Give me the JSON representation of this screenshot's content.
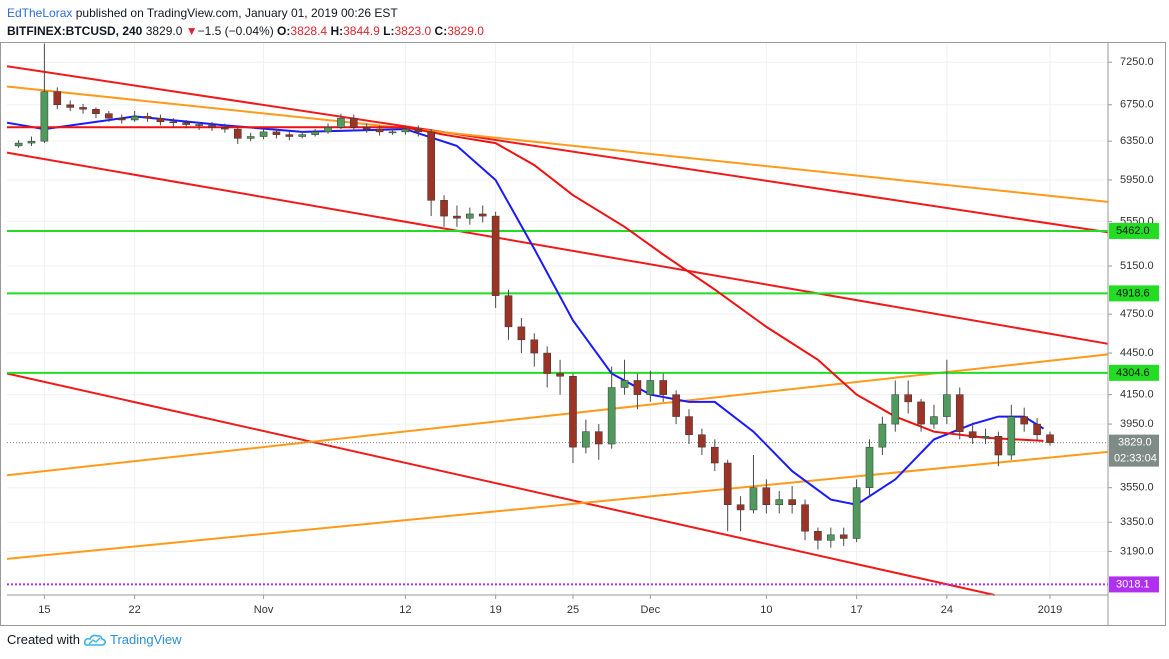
{
  "chart_data": {
    "type": "candlestick",
    "header": {
      "author": "EdTheLorax",
      "published": "published on TradingView.com, January 01, 2019 00:26 EST",
      "symbol": "BITFINEX:BTCUSD, 240",
      "price": "3829.0",
      "arrow": "▼",
      "change": "−1.5 (−0.04%)",
      "o_label": "O:",
      "o": "3828.4",
      "h_label": "H:",
      "h": "3844.9",
      "l_label": "L:",
      "l": "3823.0",
      "c_label": "C:",
      "c": "3829.0"
    },
    "footer": {
      "created": "Created with",
      "brand": "TradingView"
    },
    "log_scale": true,
    "grid": true,
    "xlim": [
      -2.9,
      82.5
    ],
    "ylim": [
      2965,
      7500
    ],
    "xticks": [
      {
        "value": 0,
        "label": "15"
      },
      {
        "value": 7,
        "label": "22"
      },
      {
        "value": 17,
        "label": "Nov"
      },
      {
        "value": 28,
        "label": "12"
      },
      {
        "value": 35,
        "label": "19"
      },
      {
        "value": 41,
        "label": "25"
      },
      {
        "value": 47,
        "label": "Dec"
      },
      {
        "value": 56,
        "label": "10"
      },
      {
        "value": 63,
        "label": "17"
      },
      {
        "value": 70,
        "label": "24"
      },
      {
        "value": 78,
        "label": "2019"
      }
    ],
    "yticks": [
      {
        "value": 7250,
        "label": "7250.0"
      },
      {
        "value": 6750,
        "label": "6750.0"
      },
      {
        "value": 6350,
        "label": "6350.0"
      },
      {
        "value": 5950,
        "label": "5950.0"
      },
      {
        "value": 5550,
        "label": "5550.0"
      },
      {
        "value": 5150,
        "label": "5150.0"
      },
      {
        "value": 4750,
        "label": "4750.0"
      },
      {
        "value": 4450,
        "label": "4450.0"
      },
      {
        "value": 4150,
        "label": "4150.0"
      },
      {
        "value": 3950,
        "label": "3950.0"
      },
      {
        "value": 3550,
        "label": "3550.0"
      },
      {
        "value": 3350,
        "label": "3350.0"
      },
      {
        "value": 3190,
        "label": "3190.0"
      }
    ],
    "candle_colors": {
      "up": "#4f9a5c",
      "down": "#9b3426",
      "wick": "#4a4a4a"
    },
    "candles": {
      "x": [
        -2,
        -1,
        0,
        1,
        2,
        3,
        4,
        5,
        6,
        7,
        8,
        9,
        10,
        11,
        12,
        13,
        14,
        15,
        16,
        17,
        18,
        19,
        20,
        21,
        22,
        23,
        24,
        25,
        26,
        27,
        28,
        29,
        30,
        31,
        32,
        33,
        34,
        35,
        36,
        37,
        38,
        39,
        40,
        41,
        42,
        43,
        44,
        45,
        46,
        47,
        48,
        49,
        50,
        51,
        52,
        53,
        54,
        55,
        56,
        57,
        58,
        59,
        60,
        61,
        62,
        63,
        64,
        65,
        66,
        67,
        68,
        69,
        70,
        71,
        72,
        73,
        74,
        75,
        76,
        77,
        78
      ],
      "open": [
        6300,
        6330,
        6350,
        6900,
        6750,
        6720,
        6700,
        6650,
        6600,
        6580,
        6620,
        6600,
        6560,
        6550,
        6530,
        6520,
        6500,
        6480,
        6380,
        6400,
        6450,
        6420,
        6400,
        6420,
        6450,
        6500,
        6600,
        6500,
        6480,
        6450,
        6450,
        6480,
        6450,
        5750,
        5600,
        5580,
        5620,
        5600,
        4900,
        4650,
        4550,
        4450,
        4300,
        4280,
        3800,
        3900,
        3820,
        4200,
        4250,
        4150,
        4250,
        4150,
        4000,
        3880,
        3800,
        3700,
        3450,
        3420,
        3550,
        3450,
        3480,
        3450,
        3300,
        3250,
        3280,
        3260,
        3550,
        3800,
        3950,
        4150,
        4100,
        3950,
        4000,
        4150,
        3900,
        3860,
        3870,
        3750,
        4000,
        3950,
        3880
      ],
      "high": [
        6360,
        6400,
        7480,
        6950,
        6800,
        6760,
        6720,
        6680,
        6640,
        6680,
        6660,
        6640,
        6600,
        6580,
        6560,
        6560,
        6540,
        6500,
        6440,
        6480,
        6480,
        6460,
        6460,
        6480,
        6540,
        6650,
        6640,
        6540,
        6520,
        6490,
        6520,
        6520,
        6480,
        5800,
        5700,
        5680,
        5700,
        5640,
        4950,
        4720,
        4600,
        4500,
        4400,
        4300,
        3980,
        3950,
        4350,
        4400,
        4300,
        4320,
        4300,
        4180,
        4050,
        3920,
        3850,
        3720,
        3500,
        3750,
        3600,
        3530,
        3560,
        3480,
        3320,
        3320,
        3320,
        3600,
        3850,
        4000,
        4250,
        4250,
        4120,
        4080,
        4400,
        4200,
        3960,
        3920,
        3900,
        4080,
        4060,
        3990,
        3900
      ],
      "low": [
        6280,
        6300,
        6330,
        6700,
        6680,
        6650,
        6600,
        6560,
        6540,
        6560,
        6560,
        6520,
        6500,
        6490,
        6470,
        6460,
        6440,
        6320,
        6350,
        6370,
        6380,
        6360,
        6380,
        6400,
        6430,
        6480,
        6460,
        6440,
        6410,
        6420,
        6420,
        6400,
        5600,
        5500,
        5500,
        5520,
        5540,
        4800,
        4550,
        4450,
        4350,
        4200,
        4150,
        3700,
        3760,
        3720,
        3790,
        4150,
        4050,
        4100,
        4100,
        3950,
        3820,
        3750,
        3650,
        3300,
        3300,
        3400,
        3400,
        3400,
        3400,
        3250,
        3200,
        3210,
        3220,
        3240,
        3500,
        3750,
        3900,
        4020,
        3900,
        3920,
        3950,
        3850,
        3820,
        3820,
        3680,
        3720,
        3900,
        3840,
        3810
      ],
      "close": [
        6330,
        6350,
        6900,
        6750,
        6720,
        6700,
        6650,
        6600,
        6580,
        6620,
        6600,
        6560,
        6550,
        6530,
        6520,
        6500,
        6480,
        6380,
        6400,
        6450,
        6420,
        6400,
        6420,
        6450,
        6500,
        6600,
        6500,
        6480,
        6450,
        6450,
        6480,
        6450,
        5750,
        5600,
        5580,
        5620,
        5600,
        4900,
        4650,
        4550,
        4450,
        4300,
        4280,
        3800,
        3900,
        3820,
        4200,
        4250,
        4150,
        4250,
        4150,
        4000,
        3880,
        3800,
        3700,
        3450,
        3420,
        3550,
        3450,
        3480,
        3450,
        3300,
        3250,
        3280,
        3260,
        3550,
        3800,
        3950,
        4150,
        4100,
        3950,
        4000,
        4150,
        3900,
        3860,
        3870,
        3750,
        4000,
        3950,
        3880,
        3829
      ]
    },
    "series": [
      {
        "color": "#1a1aff",
        "x": [
          -2.9,
          0,
          7,
          14,
          20,
          28,
          32,
          35,
          38,
          41,
          44,
          47,
          50,
          52,
          55,
          58,
          61,
          63,
          66,
          69,
          72,
          74,
          76,
          77.5
        ],
        "values": [
          6550,
          6480,
          6620,
          6520,
          6450,
          6480,
          6300,
          5950,
          5300,
          4700,
          4300,
          4150,
          4100,
          4100,
          3900,
          3650,
          3480,
          3450,
          3600,
          3850,
          3950,
          4000,
          4000,
          3920
        ]
      },
      {
        "color": "#f01010",
        "x": [
          -2.9,
          10,
          28,
          31,
          35,
          38,
          41,
          45,
          48,
          52,
          56,
          60,
          63,
          66,
          69,
          73,
          77.5
        ],
        "values": [
          6500,
          6500,
          6500,
          6420,
          6330,
          6100,
          5800,
          5500,
          5250,
          4950,
          4650,
          4400,
          4150,
          4000,
          3900,
          3860,
          3840
        ]
      }
    ],
    "trendlines": [
      {
        "color": "#f01a1a",
        "x": [
          -2.9,
          82.5
        ],
        "values": [
          7200,
          5450
        ]
      },
      {
        "color": "#f01a1a",
        "x": [
          -2.9,
          82.5
        ],
        "values": [
          6230,
          4520
        ]
      },
      {
        "color": "#f01a1a",
        "x": [
          -2.9,
          73.7
        ],
        "values": [
          4300,
          2965
        ]
      },
      {
        "color": "#ff9a1a",
        "x": [
          -2.9,
          82.5
        ],
        "values": [
          6960,
          5735
        ]
      },
      {
        "color": "#ff9a1a",
        "x": [
          -2.9,
          82.5
        ],
        "values": [
          3625,
          4440
        ]
      },
      {
        "color": "#ff9a1a",
        "x": [
          -2.9,
          82.5
        ],
        "values": [
          3150,
          3770
        ]
      }
    ],
    "levels": [
      {
        "value": 5462.0,
        "label": "5462.0",
        "color": "#22dd22",
        "style": "solid"
      },
      {
        "value": 4918.6,
        "label": "4918.6",
        "color": "#22dd22",
        "style": "solid"
      },
      {
        "value": 4304.6,
        "label": "4304.6",
        "color": "#22dd22",
        "style": "solid"
      },
      {
        "value": 3018.1,
        "label": "3018.1",
        "color": "#b030f0",
        "style": "dotted"
      }
    ],
    "last": {
      "value": 3829.0,
      "label": "3829.0",
      "countdown": "02:33:04",
      "color": "#7f8b87"
    }
  }
}
